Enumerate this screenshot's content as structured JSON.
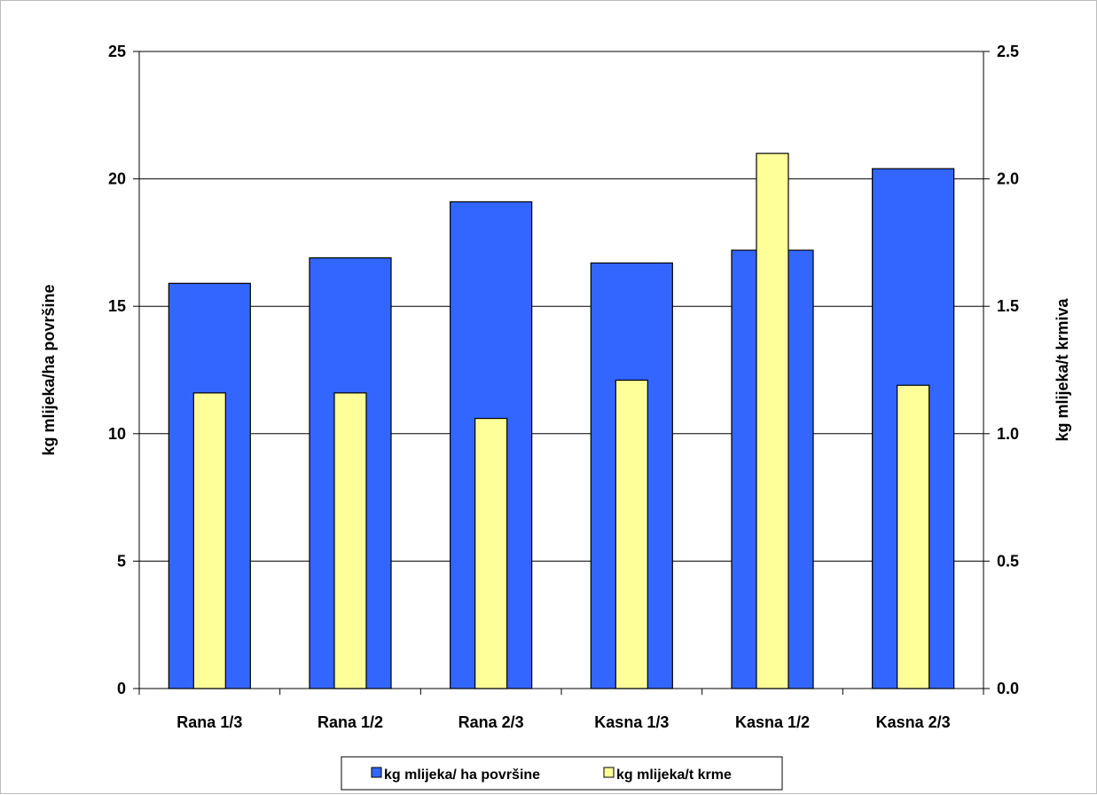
{
  "chart_data": {
    "type": "bar",
    "categories": [
      "Rana 1/3",
      "Rana 1/2",
      "Rana 2/3",
      "Kasna 1/3",
      "Kasna 1/2",
      "Kasna 2/3"
    ],
    "series": [
      {
        "name": "kg mlijeka/ ha površine",
        "axis": "left",
        "values": [
          15.9,
          16.9,
          19.1,
          16.7,
          17.2,
          20.4
        ],
        "color": "#3366ff"
      },
      {
        "name": "kg mlijeka/t krme",
        "axis": "right",
        "values": [
          1.16,
          1.16,
          1.06,
          1.21,
          2.1,
          1.19
        ],
        "color": "#ffff99"
      }
    ],
    "ylabel": "kg mlijeka/ha površine",
    "ylabel_right": "kg mlijeka/t krmiva",
    "ylim": [
      0,
      25
    ],
    "ylim_right": [
      0,
      2.5
    ],
    "yticks": [
      "0",
      "5",
      "10",
      "15",
      "20",
      "25"
    ],
    "yticks_right": [
      "0.0",
      "0.5",
      "1.0",
      "1.5",
      "2.0",
      "2.5"
    ],
    "grid": true,
    "legend_position": "bottom"
  }
}
